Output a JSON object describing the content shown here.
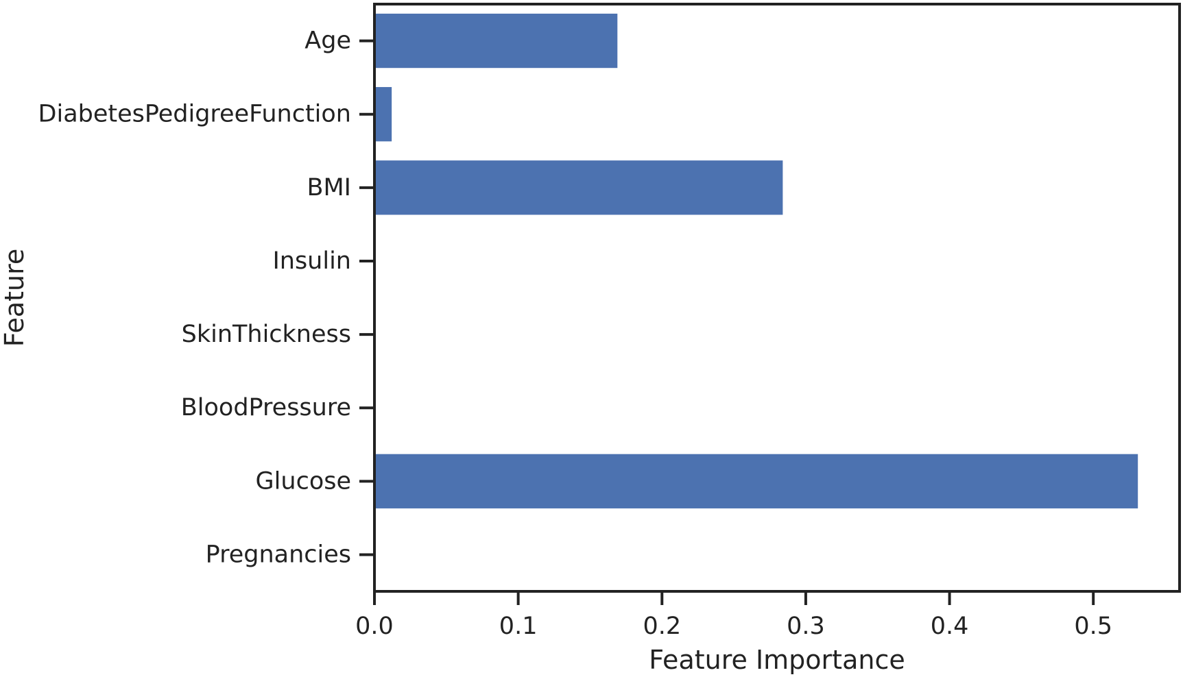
{
  "chart_data": {
    "type": "bar",
    "orientation": "horizontal",
    "categories": [
      "Pregnancies",
      "Glucose",
      "BloodPressure",
      "SkinThickness",
      "Insulin",
      "BMI",
      "DiabetesPedigreeFunction",
      "Age"
    ],
    "values": [
      0.0,
      0.531,
      0.0,
      0.0,
      0.0,
      0.284,
      0.012,
      0.169
    ],
    "xlabel": "Feature Importance",
    "ylabel": "Feature",
    "xlim": [
      0,
      0.56
    ],
    "xticks": [
      0.0,
      0.1,
      0.2,
      0.3,
      0.4,
      0.5
    ],
    "xtick_labels": [
      "0.0",
      "0.1",
      "0.2",
      "0.3",
      "0.4",
      "0.5"
    ],
    "bar_color": "#4c72b0",
    "axis_color": "#222222",
    "grid": false,
    "legend": "none"
  }
}
